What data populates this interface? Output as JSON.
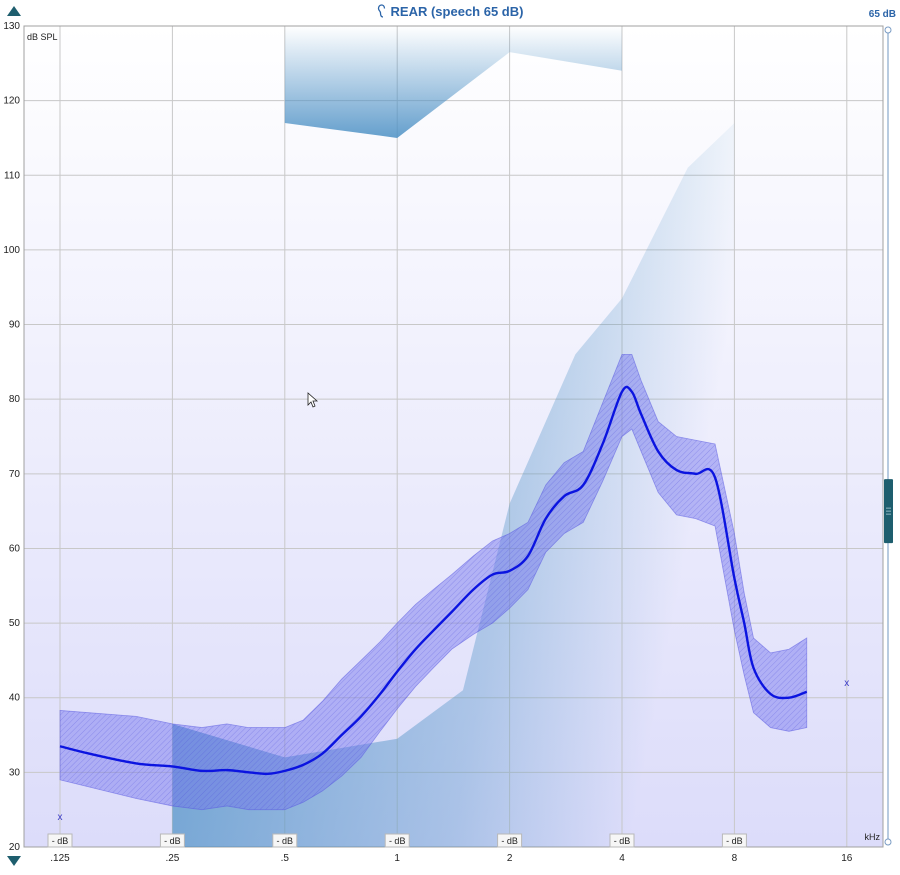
{
  "header": {
    "title": "REAR (speech 65 dB)",
    "level_badge": "65 dB",
    "ear_icon": "ear-icon",
    "title_color": "#2b64a8"
  },
  "nav": {
    "up_icon": "triangle-up-icon",
    "down_icon": "triangle-down-icon"
  },
  "chart_data": {
    "type": "area",
    "title": "REAR (speech 65 dB)",
    "ylabel": "dB SPL",
    "xlabel": "kHz",
    "x_scale": "log2",
    "xlim": [
      0.125,
      16
    ],
    "ylim": [
      20,
      130
    ],
    "grid": true,
    "x_ticks": [
      0.125,
      0.25,
      0.5,
      1,
      2,
      4,
      8,
      16
    ],
    "x_tick_labels": [
      ".125",
      ".25",
      ".5",
      "1",
      "2",
      "4",
      "8",
      "16"
    ],
    "y_ticks": [
      20,
      30,
      40,
      50,
      60,
      70,
      80,
      90,
      100,
      110,
      120,
      130
    ],
    "db_buttons": [
      "- dB",
      "- dB",
      "- dB",
      "- dB",
      "- dB",
      "- dB",
      "- dB"
    ],
    "series": [
      {
        "role": "median",
        "x": [
          0.125,
          0.15,
          0.2,
          0.25,
          0.3,
          0.35,
          0.4,
          0.45,
          0.5,
          0.56,
          0.63,
          0.71,
          0.8,
          0.9,
          1.0,
          1.12,
          1.25,
          1.4,
          1.6,
          1.8,
          2.0,
          2.24,
          2.5,
          2.8,
          3.15,
          3.55,
          4.0,
          4.25,
          4.5,
          5.0,
          5.6,
          6.3,
          7.1,
          8.0,
          8.5,
          9.0,
          10.0,
          11.2,
          12.5
        ],
        "y": [
          33.5,
          32.5,
          31.2,
          30.8,
          30.2,
          30.3,
          30.0,
          29.8,
          30.2,
          31.0,
          32.5,
          35.0,
          37.5,
          40.5,
          43.5,
          46.5,
          49.0,
          51.5,
          54.5,
          56.5,
          57.0,
          59.0,
          64.0,
          67.0,
          68.5,
          74.0,
          81.0,
          81.0,
          78.0,
          73.0,
          70.5,
          70.0,
          69.5,
          56.0,
          50.0,
          44.0,
          40.5,
          40.0,
          40.8
        ]
      },
      {
        "role": "range_upper",
        "x": [
          0.125,
          0.2,
          0.25,
          0.3,
          0.35,
          0.4,
          0.5,
          0.56,
          0.63,
          0.71,
          0.8,
          0.9,
          1.0,
          1.12,
          1.25,
          1.4,
          1.6,
          1.8,
          2.0,
          2.24,
          2.5,
          2.8,
          3.15,
          3.55,
          4.0,
          4.25,
          4.5,
          5.0,
          5.6,
          6.3,
          7.1,
          8.0,
          8.5,
          9.0,
          10.0,
          11.2,
          12.5
        ],
        "y": [
          38.3,
          37.5,
          36.5,
          36.0,
          36.5,
          36.0,
          36.0,
          37.0,
          39.5,
          42.5,
          45.0,
          47.5,
          50.0,
          52.5,
          54.5,
          56.5,
          59.0,
          61.0,
          62.0,
          63.5,
          68.5,
          71.5,
          73.0,
          79.5,
          86.0,
          86.0,
          82.5,
          77.0,
          75.0,
          74.5,
          74.0,
          62.0,
          54.0,
          48.0,
          46.0,
          46.5,
          48.0
        ]
      },
      {
        "role": "range_lower",
        "x": [
          0.125,
          0.2,
          0.25,
          0.3,
          0.35,
          0.4,
          0.5,
          0.56,
          0.63,
          0.71,
          0.8,
          0.9,
          1.0,
          1.12,
          1.25,
          1.4,
          1.6,
          1.8,
          2.0,
          2.24,
          2.5,
          2.8,
          3.15,
          3.55,
          4.0,
          4.25,
          4.5,
          5.0,
          5.6,
          6.3,
          7.1,
          8.0,
          8.5,
          9.0,
          10.0,
          11.2,
          12.5
        ],
        "y": [
          29.0,
          26.5,
          25.5,
          25.0,
          25.5,
          25.0,
          25.0,
          26.0,
          27.5,
          29.5,
          32.0,
          35.5,
          38.5,
          41.5,
          44.0,
          46.5,
          48.5,
          50.0,
          52.0,
          54.5,
          59.5,
          62.0,
          63.5,
          69.0,
          75.0,
          76.0,
          73.0,
          67.5,
          64.5,
          64.0,
          63.0,
          49.0,
          43.0,
          38.0,
          36.0,
          35.5,
          36.0
        ]
      }
    ],
    "target_regions": [
      {
        "name": "upper-limit",
        "x": [
          0.5,
          1.0,
          2.0,
          4.0
        ],
        "y": [
          117,
          115,
          126.5,
          124
        ]
      },
      {
        "name": "threshold-curve",
        "x": [
          0.25,
          0.5,
          1.0,
          1.5,
          2.0,
          3.0,
          4.0,
          6.0,
          8.0
        ],
        "y": [
          36.5,
          32,
          34.5,
          41,
          66,
          86,
          93.5,
          111,
          117
        ]
      }
    ],
    "markers": [
      {
        "x": 0.125,
        "y": 24,
        "symbol": "x"
      },
      {
        "x": 16,
        "y": 42,
        "symbol": "x"
      }
    ],
    "colors": {
      "median_line": "#0b14e0",
      "range_fill": "#7070ee",
      "target_fill": "#4a8fc4",
      "grid": "#c8c8c8",
      "bg_bottom": "#dcdcfa"
    }
  }
}
